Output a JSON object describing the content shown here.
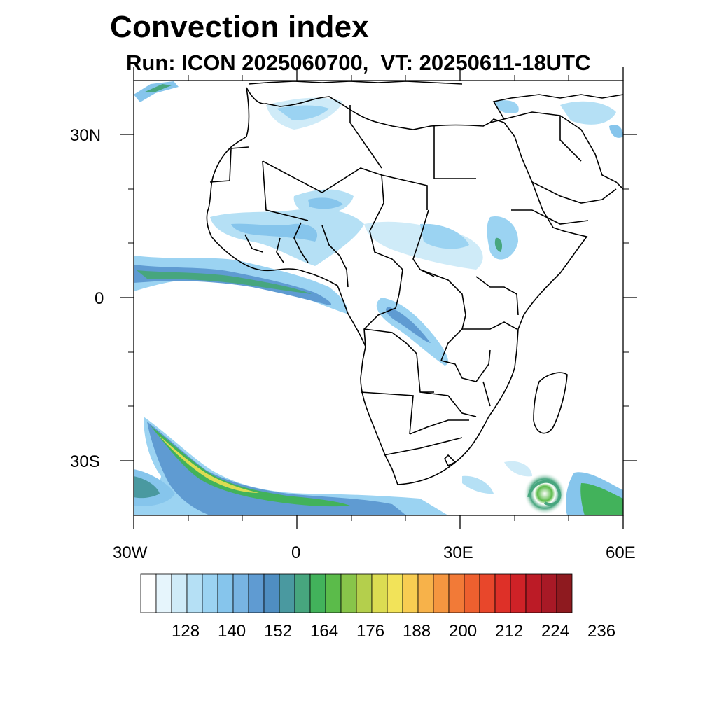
{
  "title": "Convection index",
  "subtitle": "Run: ICON 2025060700,  VT: 20250611-18UTC",
  "axes": {
    "x_ticks": [
      "30W",
      "0",
      "30E",
      "60E"
    ],
    "y_ticks": [
      "30N",
      "0",
      "30S"
    ]
  },
  "colorbar": {
    "labels": [
      "128",
      "140",
      "152",
      "164",
      "176",
      "188",
      "200",
      "212",
      "224",
      "236"
    ],
    "colors": [
      "#ffffff",
      "#e6f5fc",
      "#cfebf8",
      "#b5e0f5",
      "#9bd3f2",
      "#86c5ec",
      "#78b4e2",
      "#5f9bd2",
      "#4f8ec2",
      "#4a99a0",
      "#47a67e",
      "#42b25b",
      "#5bbb4a",
      "#88c54a",
      "#b4cf4c",
      "#dcdc52",
      "#f2e359",
      "#f8cd52",
      "#f7b24a",
      "#f59640",
      "#f27a37",
      "#ee602f",
      "#e8472b",
      "#de3028",
      "#cf2227",
      "#bc1b26",
      "#a81926",
      "#8e1a1f"
    ]
  },
  "map": {
    "region": "Africa",
    "lon_range": [
      -30,
      60
    ],
    "lat_range": [
      -40,
      40
    ]
  }
}
